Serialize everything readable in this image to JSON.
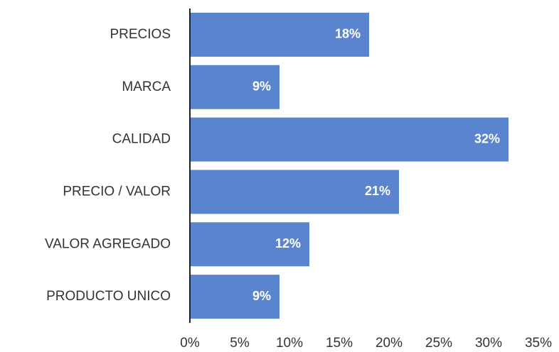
{
  "chart_data": {
    "type": "bar",
    "orientation": "horizontal",
    "categories": [
      "PRECIOS",
      "MARCA",
      "CALIDAD",
      "PRECIO / VALOR",
      "VALOR AGREGADO",
      "PRODUCTO UNICO"
    ],
    "values": [
      18,
      9,
      32,
      21,
      12,
      9
    ],
    "value_labels": [
      "18%",
      "9%",
      "32%",
      "21%",
      "12%",
      "9%"
    ],
    "color": "#5b84cf",
    "xlim": [
      0,
      35
    ],
    "xticks": [
      {
        "value": 0,
        "label": "0%"
      },
      {
        "value": 5,
        "label": "5%"
      },
      {
        "value": 10,
        "label": "10%"
      },
      {
        "value": 15,
        "label": "15%"
      },
      {
        "value": 20,
        "label": "20%"
      },
      {
        "value": 25,
        "label": "25%"
      },
      {
        "value": 30,
        "label": "30%"
      },
      {
        "value": 35,
        "label": "35%"
      }
    ],
    "grid": false
  }
}
